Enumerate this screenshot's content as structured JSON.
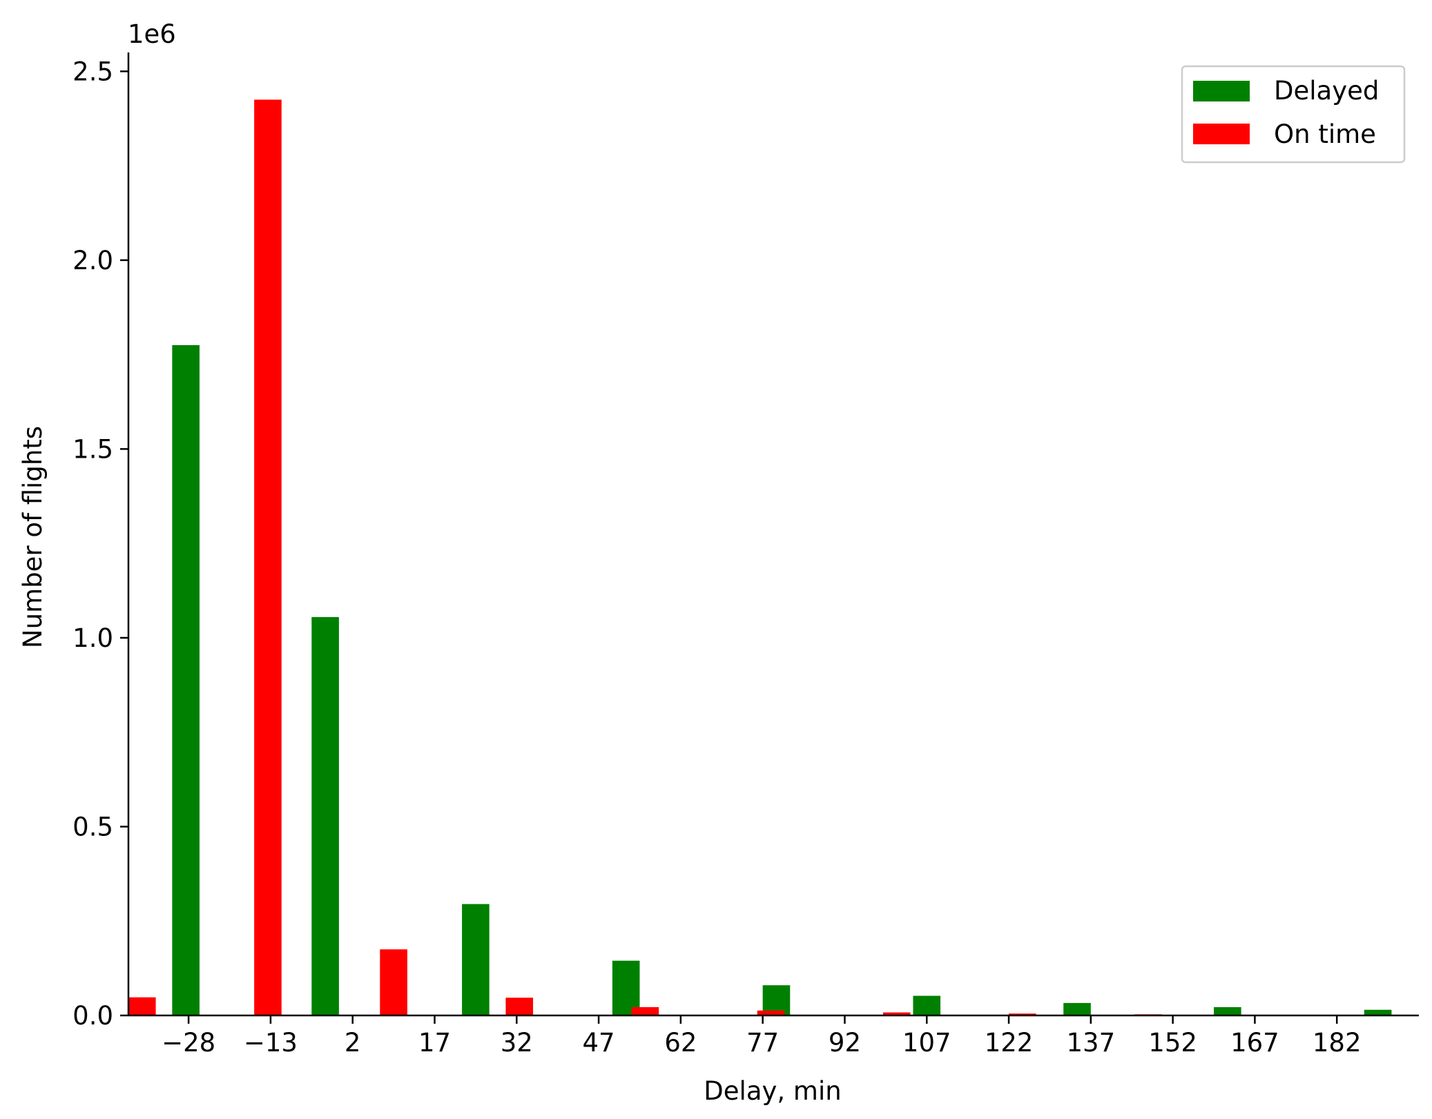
{
  "chart_data": {
    "type": "bar",
    "xlabel": "Delay, min",
    "ylabel": "Number of flights",
    "y_offset_label": "1e6",
    "y_scale_factor": 1000000,
    "xticks": [
      -28,
      -13,
      2,
      17,
      32,
      47,
      62,
      77,
      92,
      107,
      122,
      137,
      152,
      167,
      182
    ],
    "xtick_labels": [
      "−28",
      "−13",
      "2",
      "17",
      "32",
      "47",
      "62",
      "77",
      "92",
      "107",
      "122",
      "137",
      "152",
      "167",
      "182"
    ],
    "yticks": [
      0.0,
      0.5,
      1.0,
      1.5,
      2.0,
      2.5
    ],
    "ytick_labels": [
      "0.0",
      "0.5",
      "1.0",
      "1.5",
      "2.0",
      "2.5"
    ],
    "xlim": [
      -39,
      197
    ],
    "ylim": [
      0,
      2.55
    ],
    "grid": false,
    "legend_position": "top-right",
    "series": [
      {
        "name": "Delayed",
        "color": "#008000",
        "x": [
          -28.5,
          -3,
          24.5,
          52,
          79.5,
          107,
          134.5,
          162,
          189.5
        ],
        "width": 5,
        "values": [
          1.775,
          1.055,
          0.295,
          0.145,
          0.08,
          0.052,
          0.033,
          0.022,
          0.015
        ]
      },
      {
        "name": "On time",
        "color": "#ff0000",
        "x": [
          -36.5,
          -13.5,
          9.5,
          32.5,
          55.5,
          78.5,
          101.5,
          124.5,
          147.5
        ],
        "width": 5,
        "values": [
          0.048,
          2.425,
          0.175,
          0.047,
          0.022,
          0.013,
          0.008,
          0.005,
          0.003
        ]
      }
    ]
  }
}
